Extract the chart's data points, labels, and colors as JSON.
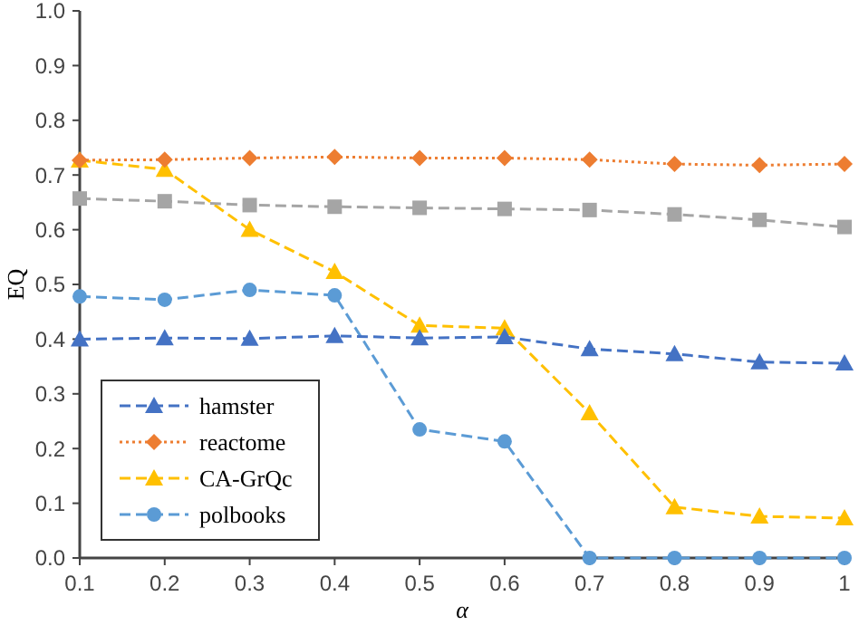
{
  "chart_data": {
    "type": "line",
    "xlabel": "α",
    "ylabel": "EQ",
    "x": [
      0.1,
      0.2,
      0.3,
      0.4,
      0.5,
      0.6,
      0.7,
      0.8,
      0.9,
      1
    ],
    "xlim": [
      0.1,
      1
    ],
    "xticks": [
      0.1,
      0.2,
      0.3,
      0.4,
      0.5,
      0.6,
      0.7,
      0.8,
      0.9,
      1
    ],
    "ylim": [
      0,
      1
    ],
    "yticks": [
      {
        "value": 0,
        "label": "0.0"
      },
      0.1,
      0.2,
      0.3,
      0.4,
      0.5,
      0.6,
      0.7,
      0.8,
      0.9,
      {
        "value": 1,
        "label": "1.0"
      }
    ],
    "grid": false,
    "legend": "bottom left",
    "series": [
      {
        "name": "hamster",
        "color": "#4472c4",
        "marker": "triangle",
        "line_style": "dashed",
        "values": [
          0.4,
          0.402,
          0.401,
          0.406,
          0.402,
          0.404,
          0.382,
          0.373,
          0.358,
          0.356
        ]
      },
      {
        "name": "reactome",
        "color": "#ed7d31",
        "marker": "diamond",
        "line_style": "dotted",
        "values": [
          0.727,
          0.728,
          0.731,
          0.733,
          0.731,
          0.731,
          0.728,
          0.72,
          0.718,
          0.72
        ]
      },
      {
        "color": "#a5a5a5",
        "marker": "square",
        "line_style": "dashed",
        "values": [
          0.657,
          0.652,
          0.645,
          0.642,
          0.64,
          0.638,
          0.636,
          0.628,
          0.618,
          0.605
        ]
      },
      {
        "name": "CA-GrQc",
        "color": "#ffc000",
        "marker": "triangle",
        "line_style": "dashed",
        "values": [
          0.727,
          0.71,
          0.6,
          0.523,
          0.425,
          0.42,
          0.265,
          0.093,
          0.076,
          0.073
        ]
      },
      {
        "name": "polbooks",
        "color": "#5b9bd5",
        "marker": "circle",
        "line_style": "dashed",
        "values": [
          0.478,
          0.472,
          0.49,
          0.48,
          0.235,
          0.213,
          0,
          0,
          0,
          0
        ]
      }
    ]
  }
}
